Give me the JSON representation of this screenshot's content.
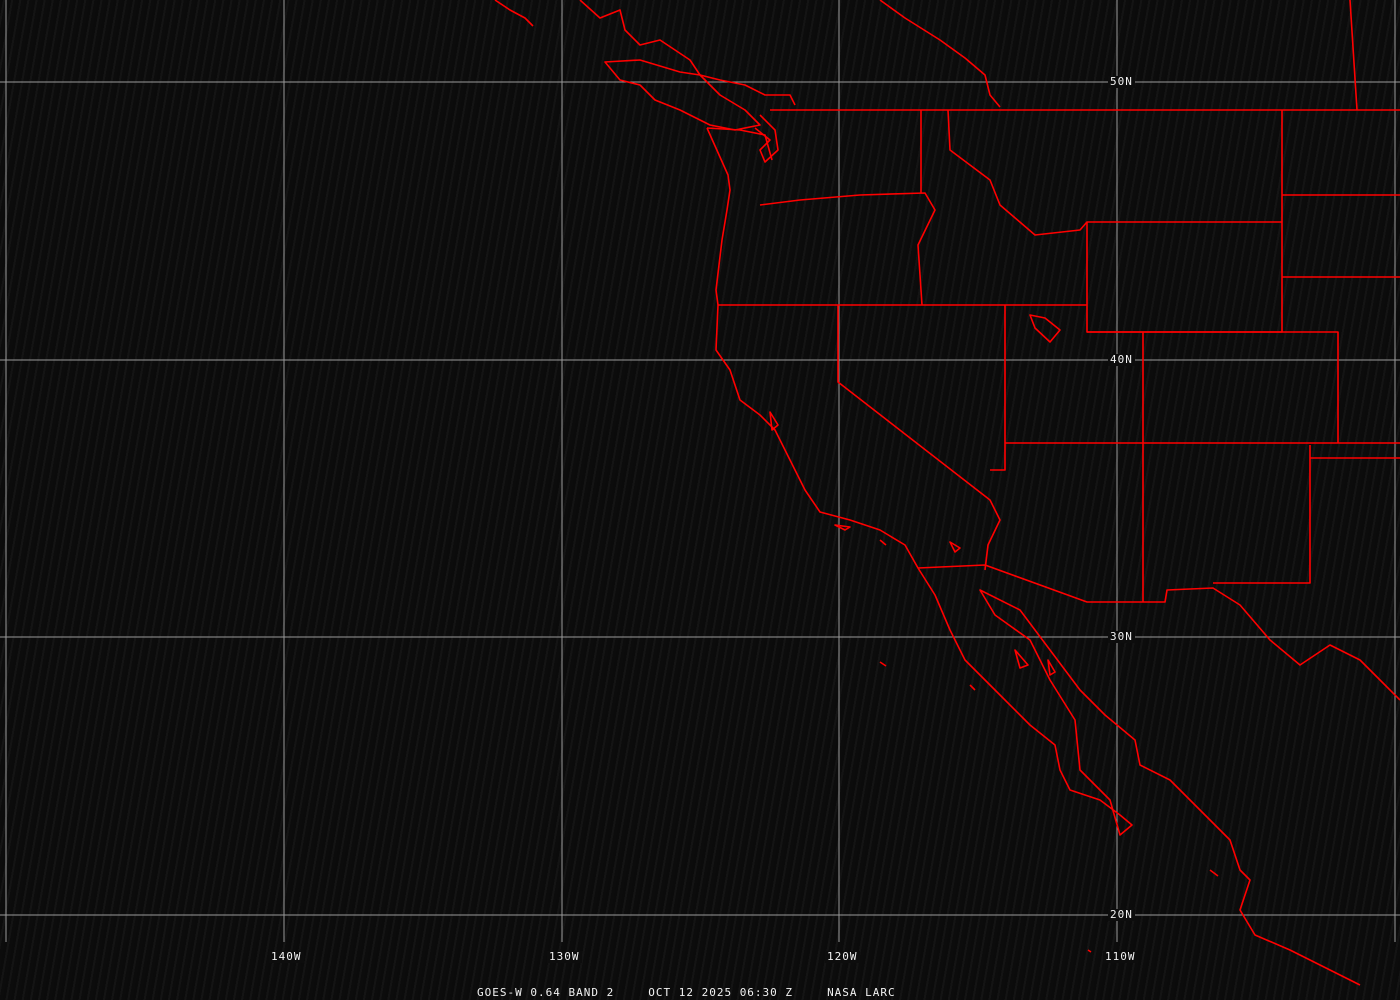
{
  "map": {
    "latitude_labels": [
      "50N",
      "40N",
      "30N",
      "20N"
    ],
    "longitude_labels": [
      "140W",
      "130W",
      "120W",
      "110W"
    ],
    "boundary_color": "#ff0000",
    "grid_color": "#9a9a9a"
  },
  "caption": {
    "product": "GOES-W 0.64 BAND 2",
    "datetime": "OCT 12 2025 06:30 Z",
    "source": "NASA LARC"
  }
}
